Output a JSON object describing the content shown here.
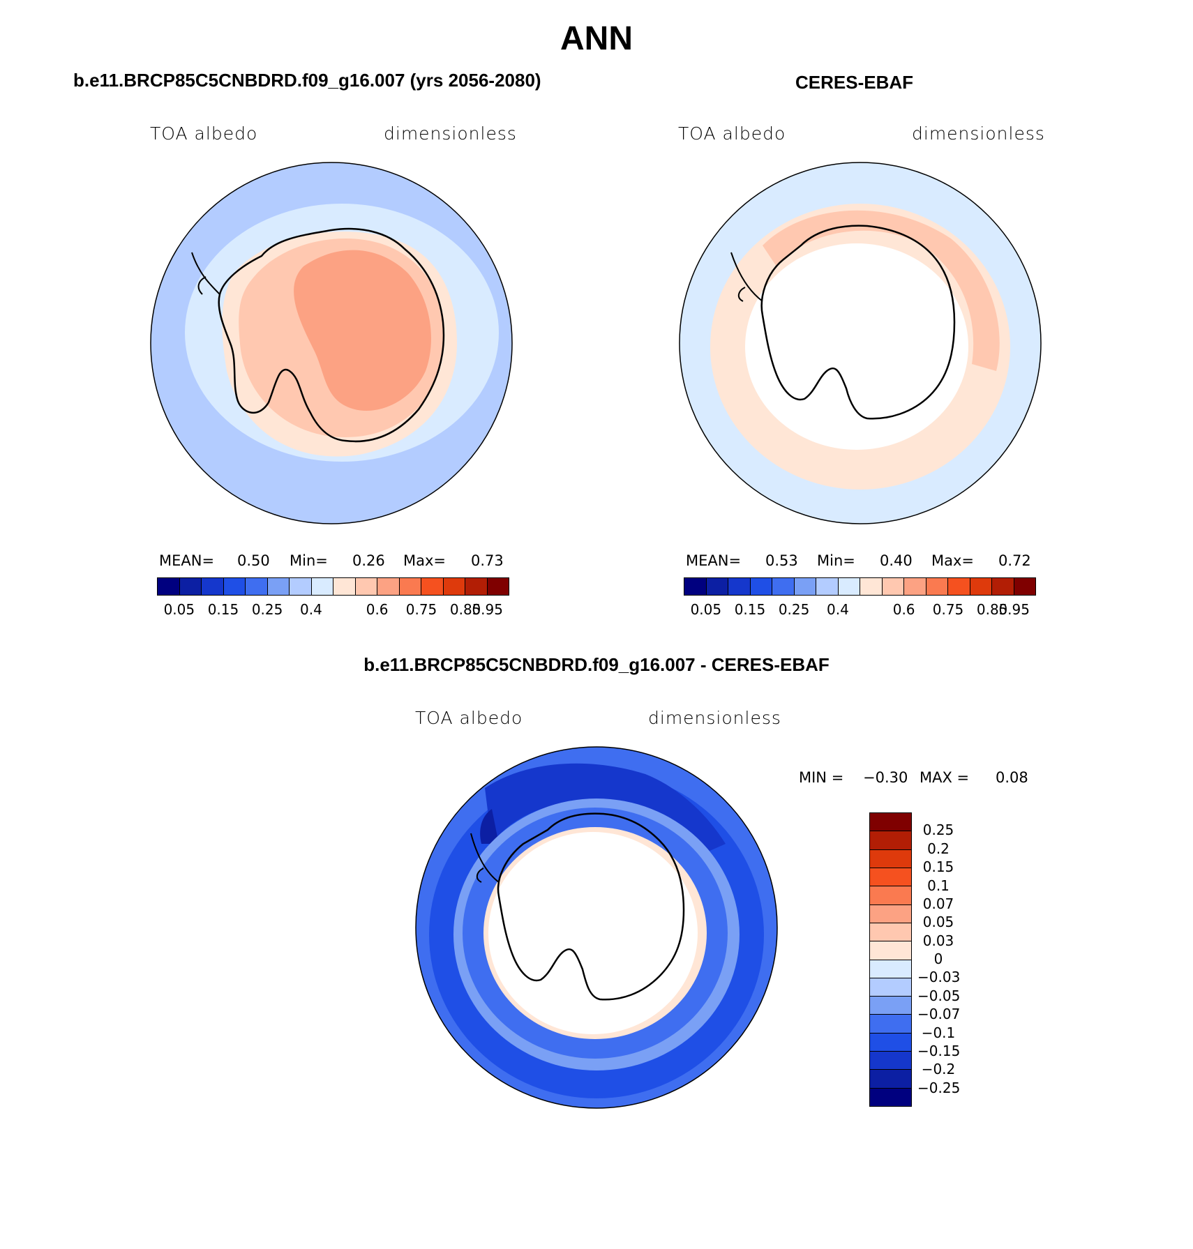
{
  "figure": {
    "title": "ANN"
  },
  "panels": [
    {
      "title": "b.e11.BRCP85C5CNBDRD.f09_g16.007 (yrs 2056-2080)",
      "variable": "TOA albedo",
      "units": "dimensionless",
      "stats": {
        "mean_label": "MEAN=",
        "mean": "0.50",
        "min_label": "Min=",
        "min": "0.26",
        "max_label": "Max=",
        "max": "0.73"
      }
    },
    {
      "title": "CERES-EBAF",
      "variable": "TOA albedo",
      "units": "dimensionless",
      "stats": {
        "mean_label": "MEAN=",
        "mean": "0.53",
        "min_label": "Min=",
        "min": "0.40",
        "max_label": "Max=",
        "max": "0.72"
      }
    },
    {
      "title": "b.e11.BRCP85C5CNBDRD.f09_g16.007 - CERES-EBAF",
      "variable": "TOA albedo",
      "units": "dimensionless",
      "stats": {
        "min_label": "MIN =",
        "min": "−0.30",
        "max_label": "MAX =",
        "max": "0.08"
      }
    }
  ],
  "colorbar_abs": {
    "tick_labels": [
      "0.05",
      "0.15",
      "0.25",
      "0.4",
      "0.6",
      "0.75",
      "0.85",
      "0.95"
    ],
    "levels": [
      0.05,
      0.1,
      0.15,
      0.2,
      0.25,
      0.3,
      0.4,
      0.5,
      0.6,
      0.7,
      0.75,
      0.8,
      0.85,
      0.9,
      0.95
    ],
    "colors": [
      "#00007f",
      "#0c1fa3",
      "#1537cc",
      "#1f4fe6",
      "#3f6ef0",
      "#7aa0f5",
      "#b3ccff",
      "#d9ebff",
      "#ffe6d6",
      "#ffc8b0",
      "#fca283",
      "#fa7a50",
      "#f5511f",
      "#de3a0c",
      "#b21e05",
      "#7f0000"
    ]
  },
  "colorbar_diff": {
    "tick_labels": [
      "0.25",
      "0.2",
      "0.15",
      "0.1",
      "0.07",
      "0.05",
      "0.03",
      "0",
      "−0.03",
      "−0.05",
      "−0.07",
      "−0.1",
      "−0.15",
      "−0.2",
      "−0.25"
    ],
    "colors": [
      "#7f0000",
      "#b21e05",
      "#de3a0c",
      "#f5511f",
      "#fa7a50",
      "#fca283",
      "#ffc8b0",
      "#ffe6d6",
      "#d9ebff",
      "#b3ccff",
      "#7aa0f5",
      "#3f6ef0",
      "#1f4fe6",
      "#1537cc",
      "#0c1fa3",
      "#00007f"
    ]
  },
  "maps": {
    "projection": "south-polar-stereographic",
    "region": "Antarctica / Southern Ocean"
  }
}
